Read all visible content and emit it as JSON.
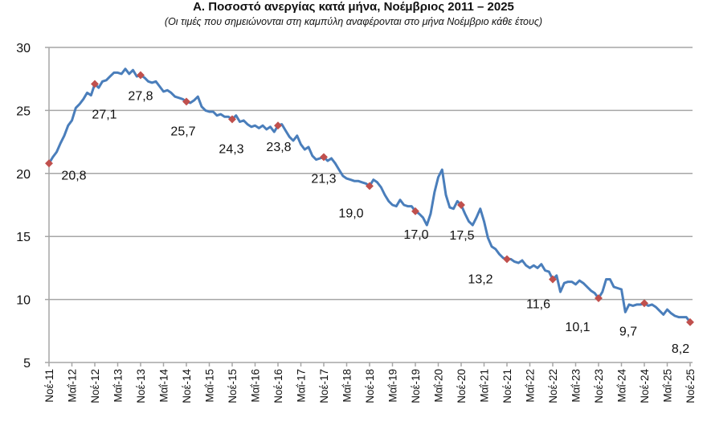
{
  "chart_data": {
    "type": "line",
    "title": "Α. Ποσοστό ανεργίας κατά μήνα, Νοέμβριος 2011 – 2025",
    "subtitle": "(Οι τιμές που σημειώνονται στη καμπύλη αναφέρονται στο μήνα Νοέμβριο κάθε έτους)",
    "xlabel": "",
    "ylabel": "",
    "ylim": [
      5,
      30
    ],
    "yticks": [
      "5",
      "10",
      "15",
      "20",
      "25",
      "30"
    ],
    "grid": true,
    "x_start": "Νοέ-11",
    "x_end": "Νοέ-25",
    "x_frequency": "monthly",
    "xtick_labels": [
      "Νοέ-11",
      "Μαΐ-12",
      "Νοέ-12",
      "Μαΐ-13",
      "Νοέ-13",
      "Μαΐ-14",
      "Νοέ-14",
      "Μαΐ-15",
      "Νοέ-15",
      "Μαΐ-16",
      "Νοέ-16",
      "Μαΐ-17",
      "Νοέ-17",
      "Μαΐ-18",
      "Νοέ-18",
      "Μαΐ-19",
      "Νοέ-19",
      "Μαΐ-20",
      "Νοέ-20",
      "Μαΐ-21",
      "Νοέ-21",
      "Μαΐ-22",
      "Νοέ-22",
      "Μαΐ-23",
      "Νοέ-23",
      "Μαΐ-24",
      "Νοέ-24",
      "Μαΐ-25",
      "Νοέ-25"
    ],
    "values": [
      20.8,
      21.3,
      21.7,
      22.4,
      23.0,
      23.8,
      24.2,
      25.2,
      25.5,
      25.9,
      26.4,
      26.2,
      27.1,
      26.8,
      27.3,
      27.4,
      27.7,
      28.0,
      28.0,
      27.9,
      28.3,
      27.9,
      28.2,
      27.7,
      27.8,
      27.6,
      27.3,
      27.2,
      27.3,
      26.9,
      26.5,
      26.6,
      26.4,
      26.1,
      26.0,
      25.9,
      25.7,
      25.6,
      25.8,
      26.1,
      25.3,
      25.0,
      24.9,
      24.9,
      24.6,
      24.7,
      24.5,
      24.5,
      24.3,
      24.6,
      24.1,
      24.2,
      23.9,
      23.7,
      23.8,
      23.6,
      23.8,
      23.5,
      23.7,
      23.3,
      23.8,
      23.9,
      23.4,
      22.9,
      22.6,
      23.0,
      22.3,
      21.9,
      22.1,
      21.4,
      21.1,
      21.2,
      21.3,
      21.0,
      21.2,
      20.8,
      20.3,
      19.8,
      19.6,
      19.5,
      19.4,
      19.4,
      19.3,
      19.2,
      19.0,
      19.5,
      19.3,
      18.9,
      18.3,
      17.8,
      17.5,
      17.4,
      17.9,
      17.5,
      17.4,
      17.4,
      17.0,
      16.8,
      16.5,
      15.9,
      16.8,
      18.5,
      19.7,
      20.3,
      18.3,
      17.3,
      17.2,
      17.8,
      17.5,
      16.8,
      16.2,
      15.9,
      16.5,
      17.2,
      16.2,
      14.9,
      14.2,
      14.0,
      13.6,
      13.3,
      13.2,
      13.2,
      13.0,
      12.9,
      13.1,
      12.7,
      12.5,
      12.7,
      12.5,
      12.8,
      12.3,
      12.2,
      11.6,
      11.9,
      10.6,
      11.3,
      11.4,
      11.4,
      11.2,
      11.5,
      11.3,
      11.0,
      10.7,
      10.5,
      10.1,
      10.6,
      11.6,
      11.6,
      11.0,
      10.9,
      10.8,
      9.0,
      9.6,
      9.5,
      9.6,
      9.6,
      9.7,
      9.5,
      9.6,
      9.4,
      9.1,
      8.8,
      9.2,
      8.9,
      8.7,
      8.6,
      8.6,
      8.6,
      8.2
    ],
    "november_labels": [
      "20,8",
      "27,1",
      "27,8",
      "25,7",
      "24,3",
      "23,8",
      "21,3",
      "19,0",
      "17,0",
      "17,5",
      "13,2",
      "11,6",
      "10,1",
      "9,7",
      "8,2"
    ],
    "line_color": "#4a7ebb",
    "marker_color": "#c0504d",
    "grid_color": "#a6a6a6"
  }
}
